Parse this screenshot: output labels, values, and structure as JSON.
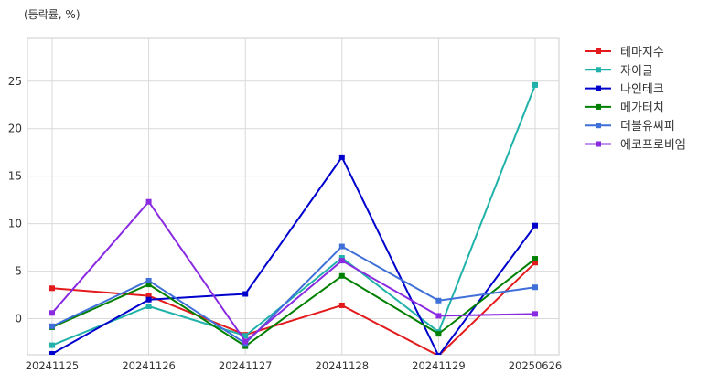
{
  "chart_data": {
    "type": "line",
    "unit_label": "(등락률, %)",
    "categories": [
      "20241125",
      "20241126",
      "20241127",
      "20241128",
      "20241129",
      "20250626"
    ],
    "yticks": [
      0,
      5,
      10,
      15,
      20,
      25
    ],
    "ylim": [
      -3.8,
      29.5
    ],
    "grid": true,
    "legend_position": "outside-top-right",
    "series": [
      {
        "name": "테마지수",
        "color": "#e31a1c",
        "values": [
          3.2,
          2.4,
          -1.7,
          1.4,
          -3.9,
          5.9
        ]
      },
      {
        "name": "자이글",
        "color": "#20b2aa",
        "values": [
          -2.8,
          1.3,
          -1.8,
          6.4,
          -1.4,
          24.6
        ]
      },
      {
        "name": "나인테크",
        "color": "#0000cd",
        "values": [
          -3.7,
          2.0,
          2.6,
          17.0,
          -3.9,
          9.8
        ]
      },
      {
        "name": "메가터치",
        "color": "#008000",
        "values": [
          -0.9,
          3.6,
          -2.9,
          4.5,
          -1.6,
          6.3
        ]
      },
      {
        "name": "더블유씨피",
        "color": "#3f6fd8",
        "values": [
          -0.8,
          4.0,
          -2.6,
          7.6,
          1.9,
          3.3
        ]
      },
      {
        "name": "에코프로비엠",
        "color": "#8a2be2",
        "values": [
          0.6,
          12.3,
          -2.4,
          6.1,
          0.3,
          0.5
        ]
      }
    ]
  }
}
